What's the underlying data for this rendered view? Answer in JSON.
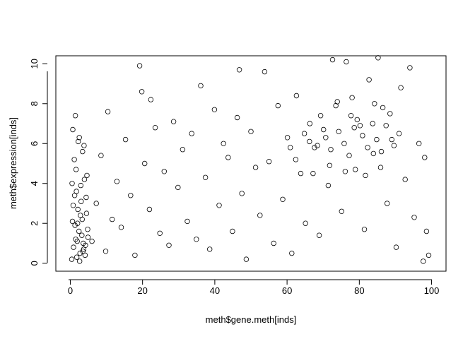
{
  "chart_data": {
    "type": "scatter",
    "title": "",
    "xlabel": "meth$gene.meth[inds]",
    "ylabel": "meth$expression[inds]",
    "xlim": [
      -4,
      104
    ],
    "ylim": [
      -0.4,
      10.4
    ],
    "x_ticks": [
      0,
      20,
      40,
      60,
      80,
      100
    ],
    "y_ticks": [
      0,
      2,
      4,
      6,
      8,
      10
    ],
    "x_tick_labels": [
      "0",
      "20",
      "40",
      "60",
      "80",
      "100"
    ],
    "y_tick_labels": [
      "0",
      "2",
      "4",
      "6",
      "8",
      "10"
    ],
    "marker": "open-circle",
    "marker_color": "#000000",
    "grid": false,
    "legend": "none",
    "points": [
      [
        0.6,
        2.1
      ],
      [
        0.9,
        0.8
      ],
      [
        1.2,
        3.4
      ],
      [
        1.5,
        1.2
      ],
      [
        1.8,
        0.3
      ],
      [
        2.1,
        2.7
      ],
      [
        2.4,
        1.6
      ],
      [
        2.7,
        0.5
      ],
      [
        3.0,
        3.1
      ],
      [
        3.3,
        2.2
      ],
      [
        3.6,
        1.0
      ],
      [
        3.9,
        4.2
      ],
      [
        4.2,
        0.9
      ],
      [
        4.5,
        2.5
      ],
      [
        4.8,
        1.7
      ],
      [
        1.1,
        5.2
      ],
      [
        2.2,
        6.1
      ],
      [
        3.4,
        5.6
      ],
      [
        1.6,
        4.7
      ],
      [
        2.9,
        3.9
      ],
      [
        0.4,
        0.2
      ],
      [
        1.3,
        1.9
      ],
      [
        2.6,
        0.1
      ],
      [
        3.7,
        0.7
      ],
      [
        4.4,
        3.3
      ],
      [
        0.8,
        2.9
      ],
      [
        2.0,
        2.0
      ],
      [
        3.2,
        1.4
      ],
      [
        4.1,
        0.4
      ],
      [
        1.9,
        1.1
      ],
      [
        0.7,
        6.7
      ],
      [
        1.4,
        7.4
      ],
      [
        2.5,
        6.3
      ],
      [
        3.8,
        5.9
      ],
      [
        4.6,
        4.4
      ],
      [
        0.5,
        4.0
      ],
      [
        1.7,
        3.6
      ],
      [
        2.8,
        2.4
      ],
      [
        3.5,
        0.6
      ],
      [
        4.9,
        1.3
      ],
      [
        6.0,
        1.1
      ],
      [
        7.2,
        3.0
      ],
      [
        8.5,
        5.4
      ],
      [
        9.8,
        0.6
      ],
      [
        10.4,
        7.6
      ],
      [
        11.6,
        2.2
      ],
      [
        12.9,
        4.1
      ],
      [
        14.1,
        1.8
      ],
      [
        15.3,
        6.2
      ],
      [
        16.7,
        3.4
      ],
      [
        17.9,
        0.4
      ],
      [
        19.2,
        9.9
      ],
      [
        19.8,
        8.6
      ],
      [
        20.6,
        5.0
      ],
      [
        21.9,
        2.7
      ],
      [
        22.3,
        8.2
      ],
      [
        23.5,
        6.8
      ],
      [
        24.8,
        1.5
      ],
      [
        26.0,
        4.6
      ],
      [
        27.3,
        0.9
      ],
      [
        28.6,
        7.1
      ],
      [
        29.8,
        3.8
      ],
      [
        31.1,
        5.7
      ],
      [
        32.4,
        2.1
      ],
      [
        33.6,
        6.5
      ],
      [
        34.9,
        1.2
      ],
      [
        36.1,
        8.9
      ],
      [
        37.4,
        4.3
      ],
      [
        38.6,
        0.7
      ],
      [
        39.9,
        7.7
      ],
      [
        41.2,
        2.9
      ],
      [
        42.4,
        6.0
      ],
      [
        43.7,
        5.3
      ],
      [
        44.9,
        1.6
      ],
      [
        46.2,
        7.3
      ],
      [
        46.8,
        9.7
      ],
      [
        47.5,
        3.5
      ],
      [
        48.7,
        0.2
      ],
      [
        50.0,
        6.6
      ],
      [
        51.3,
        4.8
      ],
      [
        52.5,
        2.4
      ],
      [
        53.8,
        9.6
      ],
      [
        55.0,
        5.1
      ],
      [
        56.3,
        1.0
      ],
      [
        57.5,
        7.9
      ],
      [
        58.8,
        3.2
      ],
      [
        60.1,
        6.3
      ],
      [
        61.3,
        0.5
      ],
      [
        62.6,
        8.4
      ],
      [
        63.8,
        4.5
      ],
      [
        65.1,
        2.0
      ],
      [
        66.3,
        7.0
      ],
      [
        67.6,
        5.8
      ],
      [
        68.9,
        1.4
      ],
      [
        70.1,
        6.7
      ],
      [
        71.4,
        3.9
      ],
      [
        72.6,
        10.2
      ],
      [
        73.9,
        8.1
      ],
      [
        75.1,
        2.6
      ],
      [
        76.4,
        10.1
      ],
      [
        77.7,
        7.4
      ],
      [
        78.9,
        4.7
      ],
      [
        80.2,
        6.9
      ],
      [
        81.4,
        1.7
      ],
      [
        82.7,
        9.2
      ],
      [
        83.9,
        5.5
      ],
      [
        85.2,
        10.3
      ],
      [
        86.5,
        7.8
      ],
      [
        87.7,
        3.0
      ],
      [
        89.0,
        6.2
      ],
      [
        90.2,
        0.8
      ],
      [
        91.5,
        8.8
      ],
      [
        92.7,
        4.2
      ],
      [
        94.0,
        9.8
      ],
      [
        95.2,
        2.3
      ],
      [
        96.5,
        6.0
      ],
      [
        97.7,
        0.1
      ],
      [
        98.1,
        5.3
      ],
      [
        98.6,
        1.6
      ],
      [
        99.2,
        0.4
      ],
      [
        66.2,
        6.1
      ],
      [
        68.4,
        5.9
      ],
      [
        70.7,
        6.3
      ],
      [
        72.1,
        5.7
      ],
      [
        74.3,
        6.6
      ],
      [
        75.8,
        6.0
      ],
      [
        77.2,
        5.4
      ],
      [
        78.6,
        6.8
      ],
      [
        79.4,
        7.2
      ],
      [
        80.9,
        6.4
      ],
      [
        82.3,
        5.8
      ],
      [
        83.7,
        7.0
      ],
      [
        84.8,
        6.2
      ],
      [
        86.1,
        5.6
      ],
      [
        87.4,
        6.9
      ],
      [
        88.5,
        7.5
      ],
      [
        89.6,
        5.9
      ],
      [
        91.0,
        6.5
      ],
      [
        69.3,
        7.4
      ],
      [
        71.8,
        4.9
      ],
      [
        73.5,
        7.9
      ],
      [
        76.1,
        4.6
      ],
      [
        78.0,
        8.3
      ],
      [
        81.7,
        4.4
      ],
      [
        84.2,
        8.0
      ],
      [
        85.9,
        4.8
      ],
      [
        62.4,
        5.2
      ],
      [
        64.8,
        6.5
      ],
      [
        67.2,
        4.5
      ],
      [
        60.9,
        5.8
      ]
    ]
  }
}
